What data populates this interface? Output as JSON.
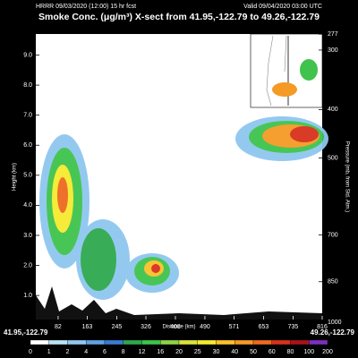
{
  "header": {
    "left": "HRRR 09/03/2020 (12:00) 15 hr fcst",
    "right": "Valid 09/04/2020 03:00 UTC"
  },
  "chart_data": {
    "type": "contour",
    "title": "Smoke Conc. (μg/m³) X-sect from 41.95,-122.79 to 49.26,-122.79",
    "ylabel": "Height (km)",
    "y2label": "Pressure (mb, from Std. Atm.)",
    "xlabel": "Distance (km)",
    "start_label": "41.95,-122.79",
    "end_label": "49.26,-122.79",
    "xlim": [
      20,
      816
    ],
    "xticks": [
      82,
      163,
      245,
      326,
      408,
      490,
      571,
      653,
      735,
      816
    ],
    "ylim": [
      0.2,
      9.7
    ],
    "yticks": [
      {
        "value": 1,
        "label": "1.0"
      },
      {
        "value": 2,
        "label": "2.0"
      },
      {
        "value": 3,
        "label": "3.0"
      },
      {
        "value": 4,
        "label": "4.0"
      },
      {
        "value": 5,
        "label": "5.0"
      },
      {
        "value": 6,
        "label": "6.0"
      },
      {
        "value": 7,
        "label": "7.0"
      },
      {
        "value": 8,
        "label": "8.0"
      },
      {
        "value": 9,
        "label": "9.0"
      }
    ],
    "y2lim": [
      1000,
      277
    ],
    "y2ticks": [
      277,
      300,
      400,
      500,
      700,
      850,
      1000
    ],
    "colorbar": {
      "levels": [
        0,
        1,
        2,
        4,
        6,
        8,
        12,
        16,
        20,
        25,
        30,
        40,
        50,
        60,
        80,
        100,
        200
      ],
      "colors": [
        "#ffffff",
        "#b9e2f5",
        "#8fc7ef",
        "#5fa3e0",
        "#3b7bd0",
        "#2ea84f",
        "#3fc34c",
        "#8fd14a",
        "#d8e23b",
        "#f6ea2e",
        "#f9c12a",
        "#f59a25",
        "#ee6a20",
        "#d8311c",
        "#a8141a",
        "#7b2fbf"
      ]
    }
  }
}
